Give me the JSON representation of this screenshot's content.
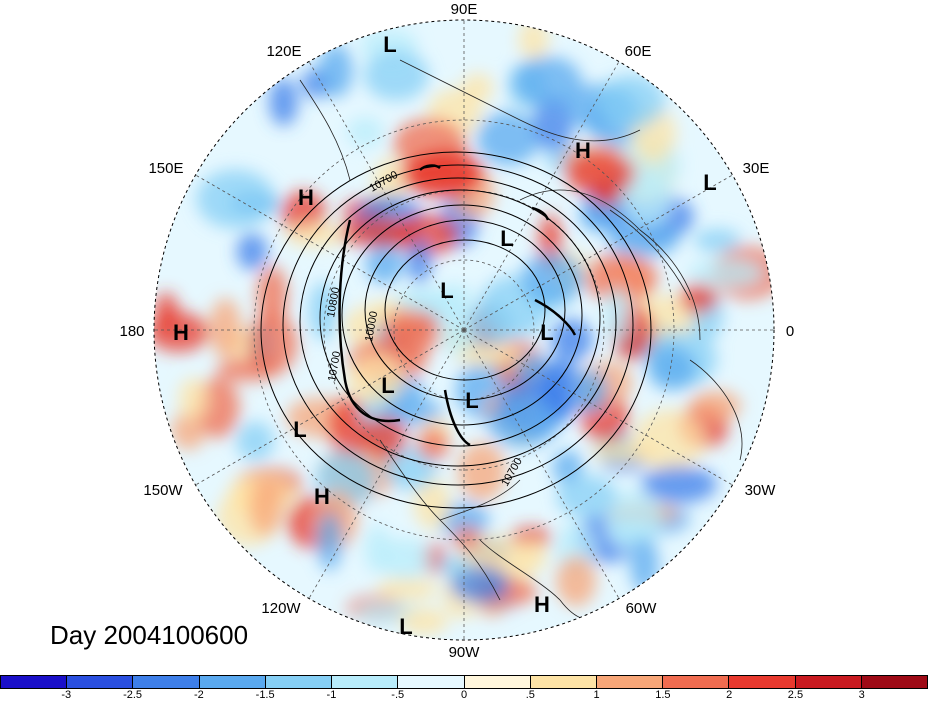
{
  "title": "Day 2004100600",
  "longitude_labels": [
    {
      "key": "90E",
      "text": "90E",
      "angle": 90
    },
    {
      "key": "60E",
      "text": "60E",
      "angle": 60
    },
    {
      "key": "30E",
      "text": "30E",
      "angle": 30
    },
    {
      "key": "0",
      "text": "0",
      "angle": 0
    },
    {
      "key": "30W",
      "text": "30W",
      "angle": -30
    },
    {
      "key": "60W",
      "text": "60W",
      "angle": -60
    },
    {
      "key": "90W",
      "text": "90W",
      "angle": -90
    },
    {
      "key": "120W",
      "text": "120W",
      "angle": -120
    },
    {
      "key": "150W",
      "text": "150W",
      "angle": -150
    },
    {
      "key": "180",
      "text": "180",
      "angle": 180
    },
    {
      "key": "150E",
      "text": "150E",
      "angle": 150
    },
    {
      "key": "120E",
      "text": "120E",
      "angle": 120
    }
  ],
  "pressure_centers": [
    {
      "type": "L",
      "text": "L"
    },
    {
      "type": "L",
      "text": "L"
    },
    {
      "type": "L",
      "text": "L"
    },
    {
      "type": "L",
      "text": "L"
    },
    {
      "type": "L",
      "text": "L"
    },
    {
      "type": "L",
      "text": "L"
    },
    {
      "type": "L",
      "text": "L"
    },
    {
      "type": "L",
      "text": "L"
    },
    {
      "type": "L",
      "text": "L"
    },
    {
      "type": "H",
      "text": "H"
    },
    {
      "type": "H",
      "text": "H"
    },
    {
      "type": "H",
      "text": "H"
    },
    {
      "type": "H",
      "text": "H"
    },
    {
      "type": "H",
      "text": "H"
    }
  ],
  "contour_labels": [
    {
      "text": "10700"
    },
    {
      "text": "10800"
    },
    {
      "text": "10000"
    },
    {
      "text": "10700"
    },
    {
      "text": "10700"
    }
  ],
  "colorbar": {
    "colors": [
      "#1a0fc9",
      "#2a4fe0",
      "#3e7fe9",
      "#5aa9ef",
      "#86cff5",
      "#b8ecfb",
      "#e6f8ff",
      "#fff6dc",
      "#fde3a6",
      "#f7a678",
      "#f06c50",
      "#e8392e",
      "#c91a20",
      "#9e0a16"
    ],
    "tick_labels": [
      "-3",
      "-2.5",
      "-2",
      "-1.5",
      "-1",
      "-.5",
      "0",
      ".5",
      "1",
      "1.5",
      "2",
      "2.5",
      "3"
    ]
  }
}
